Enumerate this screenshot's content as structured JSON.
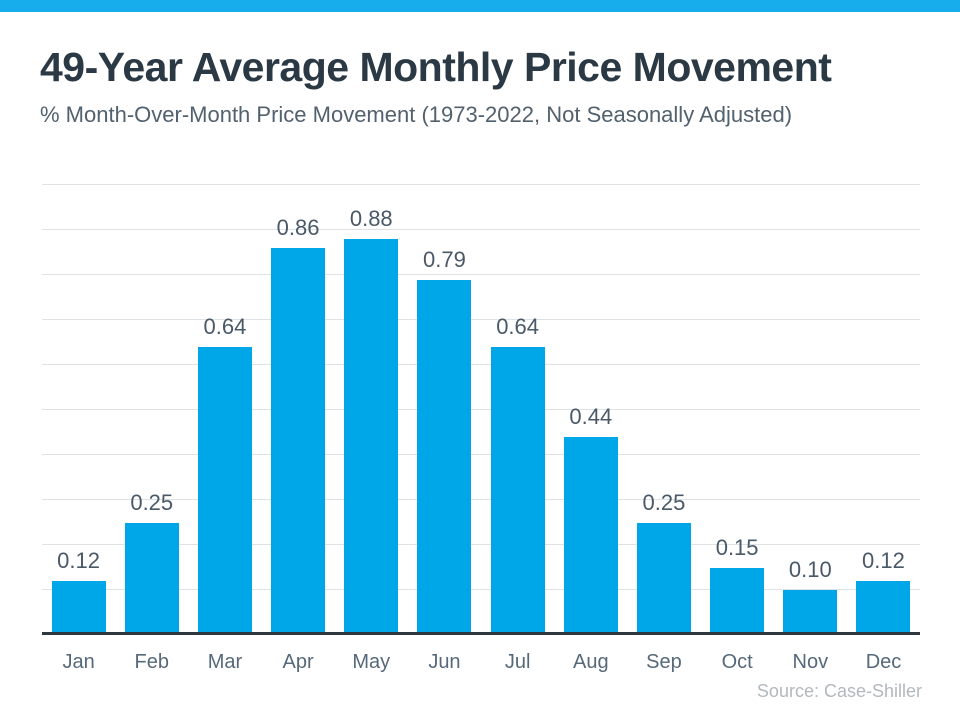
{
  "chart_data": {
    "type": "bar",
    "categories": [
      "Jan",
      "Feb",
      "Mar",
      "Apr",
      "May",
      "Jun",
      "Jul",
      "Aug",
      "Sep",
      "Oct",
      "Nov",
      "Dec"
    ],
    "values": [
      0.12,
      0.25,
      0.64,
      0.86,
      0.88,
      0.79,
      0.64,
      0.44,
      0.25,
      0.15,
      0.1,
      0.12
    ],
    "value_labels": [
      "0.12",
      "0.25",
      "0.64",
      "0.86",
      "0.88",
      "0.79",
      "0.64",
      "0.44",
      "0.25",
      "0.15",
      "0.10",
      "0.12"
    ],
    "title": "49-Year Average Monthly Price Movement",
    "subtitle": "% Month-Over-Month Price Movement (1973-2022, Not Seasonally Adjusted)",
    "xlabel": "",
    "ylabel": "",
    "ylim": [
      0,
      1.0
    ],
    "grid_step": 0.1,
    "grid": true,
    "legend": false,
    "data_labels": true,
    "source": "Source: Case-Shiller"
  },
  "colors": {
    "banner": "#17acec",
    "bar": "#00a7e8",
    "title": "#2b3945",
    "subtitle": "#52616e",
    "value_label": "#4a5968",
    "month_label": "#56697a",
    "gridline": "#dfe2e5",
    "axis": "#30383f",
    "source": "#b2b8be"
  }
}
